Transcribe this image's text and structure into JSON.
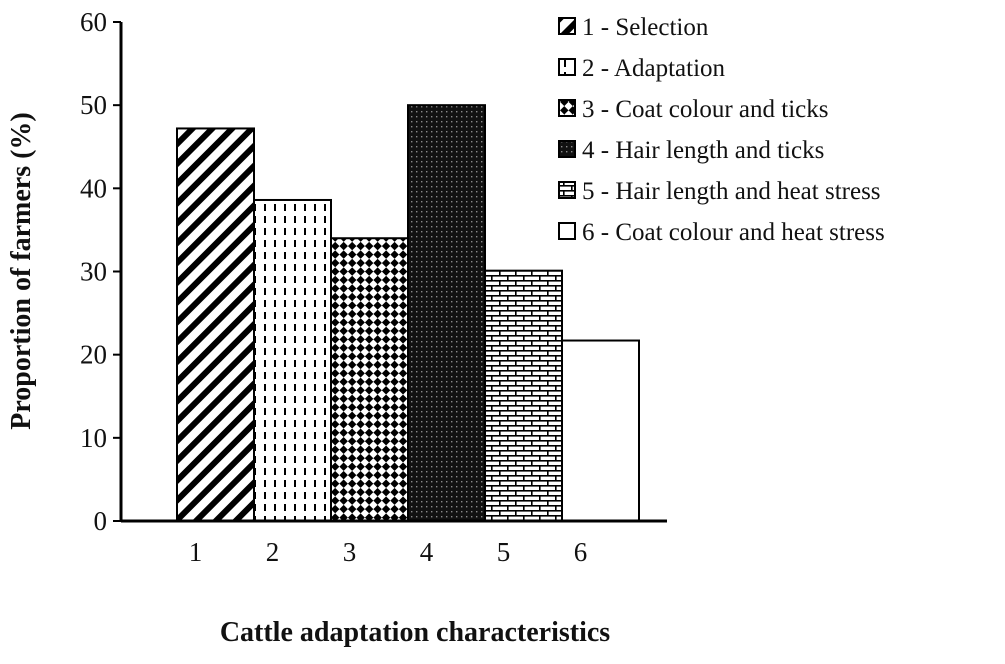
{
  "chart_data": {
    "type": "bar",
    "categories": [
      "1",
      "2",
      "3",
      "4",
      "5",
      "6"
    ],
    "values": [
      47.2,
      38.6,
      34.0,
      50.0,
      30.1,
      21.7
    ],
    "title": "",
    "xlabel": "Cattle adaptation characteristics",
    "ylabel": "Proportion of farmers (%)",
    "ylim": [
      0,
      60
    ],
    "yticks": [
      "0",
      "10",
      "20",
      "30",
      "40",
      "50",
      "60"
    ],
    "grid": false,
    "legend_position": "top-right",
    "legend": [
      {
        "label": "1 - Selection",
        "pattern": "diagonal-stripes"
      },
      {
        "label": "2 - Adaptation",
        "pattern": "dashed-vertical"
      },
      {
        "label": "3 - Coat colour and ticks",
        "pattern": "diamond-checker"
      },
      {
        "label": "4 - Hair length and ticks",
        "pattern": "dense-dots-dark"
      },
      {
        "label": "5 - Hair length and heat stress",
        "pattern": "brick"
      },
      {
        "label": "6 - Coat colour and heat stress",
        "pattern": "solid-white"
      }
    ],
    "colors": {
      "stroke": "#000000",
      "fill_light": "#ffffff",
      "fill_dark": "#000000"
    }
  }
}
